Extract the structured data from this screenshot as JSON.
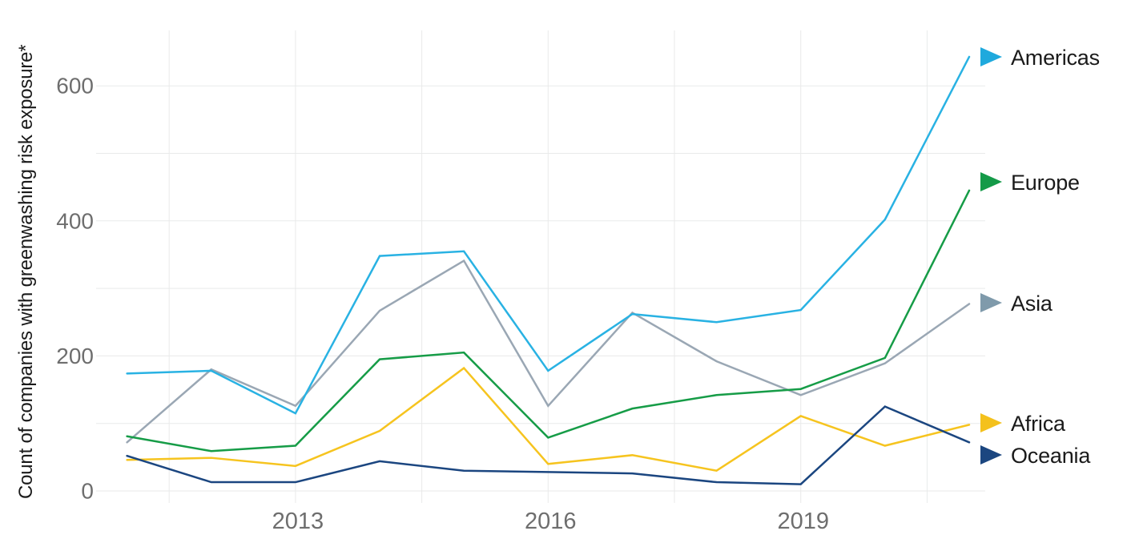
{
  "figure": {
    "background": "#ffffff",
    "grid_color": "#e9eaea",
    "tick_label_color": "#6e6e6e",
    "text_color": "#1a1a1a"
  },
  "chart_data": {
    "type": "line",
    "title": "",
    "xlabel": "",
    "ylabel": "Count of companies with greenwashing risk exposure*",
    "x": [
      2011,
      2012,
      2013,
      2014,
      2015,
      2016,
      2017,
      2018,
      2019,
      2020,
      2021
    ],
    "series": [
      {
        "name": "Americas",
        "color": "#29b2e3",
        "marker_color": "#1fa9dd",
        "values": [
          174,
          178,
          115,
          348,
          355,
          178,
          262,
          250,
          268,
          402,
          643
        ]
      },
      {
        "name": "Europe",
        "color": "#169c47",
        "marker_color": "#149a48",
        "values": [
          81,
          59,
          67,
          195,
          205,
          79,
          122,
          142,
          151,
          197,
          445
        ]
      },
      {
        "name": "Asia",
        "color": "#9aa7b4",
        "marker_color": "#7f9aab",
        "values": [
          72,
          180,
          126,
          267,
          341,
          126,
          264,
          192,
          142,
          189,
          277
        ]
      },
      {
        "name": "Africa",
        "color": "#f6c41f",
        "marker_color": "#f4c11c",
        "values": [
          46,
          49,
          37,
          89,
          182,
          40,
          53,
          30,
          111,
          67,
          98
        ]
      },
      {
        "name": "Oceania",
        "color": "#1b4680",
        "marker_color": "#1b4680",
        "values": [
          52,
          13,
          13,
          44,
          30,
          28,
          26,
          13,
          10,
          125,
          72
        ]
      }
    ],
    "ylim": [
      0,
      700
    ],
    "y_gridlines": [
      0,
      100,
      200,
      300,
      400,
      500,
      600
    ],
    "y_tick_labels": [
      {
        "value": 0,
        "label": "0"
      },
      {
        "value": 200,
        "label": "200"
      },
      {
        "value": 400,
        "label": "400"
      },
      {
        "value": 600,
        "label": "600"
      }
    ],
    "x_gridline_years": [
      2011.5,
      2013,
      2014.5,
      2016,
      2017.5,
      2019,
      2020.5
    ],
    "x_tick_labels": [
      {
        "year": 2013,
        "label": "2013"
      },
      {
        "year": 2016,
        "label": "2016"
      },
      {
        "year": 2019,
        "label": "2019"
      }
    ],
    "grid": "both",
    "legend_position": "right"
  }
}
